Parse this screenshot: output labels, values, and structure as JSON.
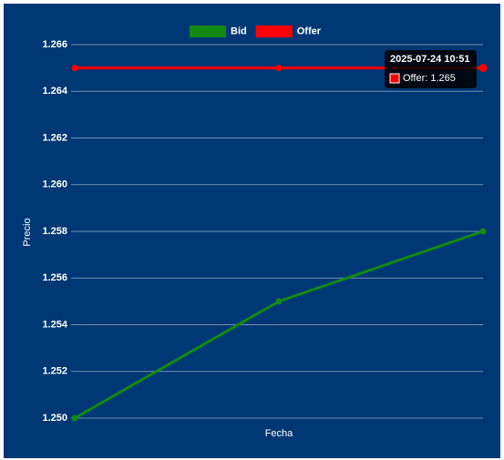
{
  "chart_data": {
    "type": "line",
    "x_label": "Fecha",
    "y_label": "Precio",
    "categories": [
      null,
      null,
      null
    ],
    "series": [
      {
        "name": "Bid",
        "color": "#138a13",
        "values": [
          1.25,
          1.255,
          1.258
        ]
      },
      {
        "name": "Offer",
        "color": "#ff0000",
        "values": [
          1.265,
          1.265,
          1.265
        ]
      }
    ],
    "ylim": [
      1.25,
      1.266
    ],
    "yticks": [
      {
        "value": 1.25,
        "label": "1.250"
      },
      1.252,
      1.254,
      1.256,
      1.258,
      {
        "value": 1.26,
        "label": "1.260"
      },
      1.262,
      1.264,
      1.266
    ],
    "grid": true,
    "legend": "top",
    "tooltip": {
      "title": "2025-07-24 10:51",
      "label": "Offer: 1.265",
      "series": 1,
      "index": 2
    }
  }
}
